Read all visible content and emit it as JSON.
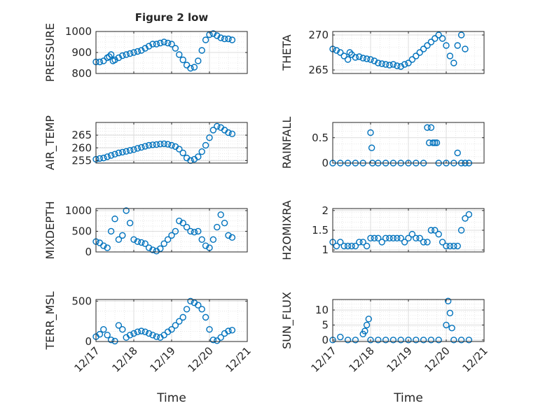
{
  "chart_data": [
    {
      "type": "scatter",
      "title": "Figure 2 low",
      "xlabel": "",
      "ylabel": "PRESSURE",
      "xlim": [
        0,
        4
      ],
      "ylim": [
        800,
        1000
      ],
      "yticks": [
        800,
        900,
        1000
      ],
      "xticks": [
        0,
        1,
        2,
        3,
        4
      ],
      "xticklabels": [
        "12/17",
        "12/18",
        "12/19",
        "12/20",
        "12/21"
      ],
      "series": [
        {
          "x": [
            0,
            0.1,
            0.2,
            0.3,
            0.35,
            0.4,
            0.45,
            0.5,
            0.6,
            0.7,
            0.8,
            0.9,
            1.0,
            1.1,
            1.2,
            1.3,
            1.4,
            1.5,
            1.6,
            1.7,
            1.8,
            1.9,
            2.0,
            2.1,
            2.2,
            2.3,
            2.4,
            2.5,
            2.6,
            2.7,
            2.8,
            2.9,
            3.0,
            3.1,
            3.2,
            3.3,
            3.4,
            3.5,
            3.6
          ],
          "y": [
            855,
            855,
            860,
            875,
            880,
            890,
            860,
            865,
            875,
            885,
            890,
            895,
            900,
            905,
            910,
            920,
            930,
            940,
            940,
            945,
            950,
            945,
            940,
            920,
            890,
            865,
            840,
            825,
            830,
            860,
            910,
            960,
            985,
            990,
            980,
            970,
            965,
            965,
            960
          ]
        }
      ]
    },
    {
      "type": "scatter",
      "xlabel": "",
      "ylabel": "THETA",
      "xlim": [
        0,
        4
      ],
      "ylim": [
        264.5,
        270.5
      ],
      "yticks": [
        265,
        270
      ],
      "xticks": [
        0,
        1,
        2,
        3,
        4
      ],
      "xticklabels": [
        "12/17",
        "12/18",
        "12/19",
        "12/20",
        "12/21"
      ],
      "series": [
        {
          "x": [
            0,
            0.1,
            0.2,
            0.3,
            0.4,
            0.45,
            0.5,
            0.6,
            0.7,
            0.8,
            0.9,
            1.0,
            1.1,
            1.2,
            1.3,
            1.4,
            1.5,
            1.6,
            1.7,
            1.8,
            1.9,
            2.0,
            2.1,
            2.2,
            2.3,
            2.4,
            2.5,
            2.6,
            2.7,
            2.8,
            2.9,
            3.0,
            3.1,
            3.2,
            3.3,
            3.4,
            3.5
          ],
          "y": [
            268,
            267.8,
            267.5,
            267,
            266.5,
            267.5,
            267.2,
            266.8,
            266.9,
            266.7,
            266.6,
            266.5,
            266.3,
            266,
            265.9,
            265.8,
            265.7,
            265.8,
            265.6,
            265.5,
            265.8,
            266,
            266.5,
            267,
            267.5,
            268,
            268.5,
            269,
            269.5,
            270,
            269.5,
            268.5,
            267,
            266,
            268.5,
            270,
            268
          ]
        }
      ]
    },
    {
      "type": "scatter",
      "xlabel": "",
      "ylabel": "AIR_TEMP",
      "xlim": [
        0,
        4
      ],
      "ylim": [
        254,
        270
      ],
      "yticks": [
        255,
        260,
        265
      ],
      "xticks": [
        0,
        1,
        2,
        3,
        4
      ],
      "xticklabels": [
        "12/17",
        "12/18",
        "12/19",
        "12/20",
        "12/21"
      ],
      "series": [
        {
          "x": [
            0,
            0.1,
            0.2,
            0.3,
            0.4,
            0.5,
            0.6,
            0.7,
            0.8,
            0.9,
            1.0,
            1.1,
            1.2,
            1.3,
            1.4,
            1.5,
            1.6,
            1.7,
            1.8,
            1.9,
            2.0,
            2.1,
            2.2,
            2.3,
            2.4,
            2.5,
            2.6,
            2.7,
            2.8,
            2.9,
            3.0,
            3.1,
            3.2,
            3.3,
            3.4,
            3.5,
            3.6
          ],
          "y": [
            255.5,
            255.8,
            256,
            256.5,
            257,
            257.5,
            258,
            258.3,
            258.6,
            259,
            259.3,
            259.8,
            260.2,
            260.6,
            261,
            261.2,
            261.3,
            261.5,
            261.6,
            261.4,
            261,
            260.5,
            259.5,
            258,
            256,
            255,
            255.5,
            256.5,
            258.5,
            261,
            264,
            267,
            268.5,
            268,
            267,
            266,
            265.5
          ]
        }
      ]
    },
    {
      "type": "scatter",
      "xlabel": "",
      "ylabel": "RAINFALL",
      "xlim": [
        0,
        4
      ],
      "ylim": [
        0,
        0.8
      ],
      "yticks": [
        0,
        0.5
      ],
      "xticks": [
        0,
        1,
        2,
        3,
        4
      ],
      "xticklabels": [
        "12/17",
        "12/18",
        "12/19",
        "12/20",
        "12/21"
      ],
      "series": [
        {
          "x": [
            0,
            0.2,
            0.4,
            0.6,
            0.8,
            1.0,
            1.03,
            1.05,
            1.2,
            1.4,
            1.6,
            1.8,
            2.0,
            2.2,
            2.4,
            2.5,
            2.55,
            2.6,
            2.65,
            2.7,
            2.75,
            2.8,
            3.0,
            3.2,
            3.3,
            3.4,
            3.5,
            3.6
          ],
          "y": [
            0,
            0,
            0,
            0,
            0,
            0.6,
            0.3,
            0,
            0,
            0,
            0,
            0,
            0,
            0,
            0,
            0.7,
            0.4,
            0.7,
            0.4,
            0.4,
            0.4,
            0,
            0,
            0,
            0.2,
            0,
            0,
            0
          ]
        }
      ]
    },
    {
      "type": "scatter",
      "xlabel": "",
      "ylabel": "MIXDEPTH",
      "xlim": [
        0,
        4
      ],
      "ylim": [
        0,
        1050
      ],
      "yticks": [
        0,
        500,
        1000
      ],
      "xticks": [
        0,
        1,
        2,
        3,
        4
      ],
      "xticklabels": [
        "12/17",
        "12/18",
        "12/19",
        "12/20",
        "12/21"
      ],
      "series": [
        {
          "x": [
            0,
            0.1,
            0.2,
            0.3,
            0.4,
            0.5,
            0.6,
            0.7,
            0.8,
            0.9,
            1.0,
            1.1,
            1.2,
            1.3,
            1.4,
            1.5,
            1.6,
            1.7,
            1.8,
            1.9,
            2.0,
            2.1,
            2.2,
            2.3,
            2.4,
            2.5,
            2.6,
            2.7,
            2.8,
            2.9,
            3.0,
            3.1,
            3.2,
            3.3,
            3.4,
            3.5,
            3.6
          ],
          "y": [
            250,
            220,
            150,
            100,
            500,
            800,
            300,
            400,
            1000,
            700,
            300,
            250,
            230,
            200,
            100,
            50,
            20,
            80,
            200,
            300,
            400,
            500,
            750,
            700,
            600,
            500,
            480,
            500,
            300,
            150,
            100,
            300,
            600,
            900,
            700,
            400,
            350
          ]
        }
      ]
    },
    {
      "type": "scatter",
      "xlabel": "",
      "ylabel": "H2OMIXRA",
      "xlim": [
        0,
        4
      ],
      "ylim": [
        0.95,
        2.05
      ],
      "yticks": [
        1,
        1.5,
        2
      ],
      "xticks": [
        0,
        1,
        2,
        3,
        4
      ],
      "xticklabels": [
        "12/17",
        "12/18",
        "12/19",
        "12/20",
        "12/21"
      ],
      "series": [
        {
          "x": [
            0,
            0.1,
            0.2,
            0.3,
            0.4,
            0.5,
            0.6,
            0.7,
            0.8,
            0.9,
            1.0,
            1.1,
            1.2,
            1.3,
            1.4,
            1.5,
            1.6,
            1.7,
            1.8,
            1.9,
            2.0,
            2.1,
            2.2,
            2.3,
            2.4,
            2.5,
            2.6,
            2.7,
            2.8,
            2.9,
            3.0,
            3.1,
            3.2,
            3.3,
            3.4,
            3.5,
            3.6
          ],
          "y": [
            1.2,
            1.1,
            1.2,
            1.1,
            1.1,
            1.1,
            1.1,
            1.2,
            1.2,
            1.1,
            1.3,
            1.3,
            1.3,
            1.2,
            1.3,
            1.3,
            1.3,
            1.3,
            1.3,
            1.2,
            1.3,
            1.4,
            1.3,
            1.3,
            1.2,
            1.2,
            1.5,
            1.5,
            1.4,
            1.2,
            1.1,
            1.1,
            1.1,
            1.1,
            1.5,
            1.8,
            1.9
          ]
        }
      ]
    },
    {
      "type": "scatter",
      "xlabel": "Time",
      "ylabel": "TERR_MSL",
      "xlim": [
        0,
        4
      ],
      "ylim": [
        0,
        520
      ],
      "yticks": [
        0,
        500
      ],
      "xticks": [
        0,
        1,
        2,
        3,
        4
      ],
      "xticklabels": [
        "12/17",
        "12/18",
        "12/19",
        "12/20",
        "12/21"
      ],
      "series": [
        {
          "x": [
            0,
            0.1,
            0.2,
            0.3,
            0.4,
            0.5,
            0.6,
            0.7,
            0.8,
            0.9,
            1.0,
            1.1,
            1.2,
            1.3,
            1.4,
            1.5,
            1.6,
            1.7,
            1.8,
            1.9,
            2.0,
            2.1,
            2.2,
            2.3,
            2.4,
            2.5,
            2.6,
            2.7,
            2.8,
            2.9,
            3.0,
            3.1,
            3.2,
            3.3,
            3.4,
            3.5,
            3.6
          ],
          "y": [
            60,
            90,
            150,
            80,
            20,
            5,
            200,
            150,
            50,
            80,
            100,
            120,
            130,
            120,
            100,
            80,
            60,
            50,
            80,
            120,
            150,
            200,
            250,
            300,
            400,
            500,
            480,
            450,
            400,
            300,
            150,
            20,
            10,
            50,
            100,
            130,
            140
          ]
        }
      ]
    },
    {
      "type": "scatter",
      "xlabel": "Time",
      "ylabel": "SUN_FLUX",
      "xlim": [
        0,
        4
      ],
      "ylim": [
        -0.5,
        13.5
      ],
      "yticks": [
        0,
        5,
        10
      ],
      "xticks": [
        0,
        1,
        2,
        3,
        4
      ],
      "xticklabels": [
        "12/17",
        "12/18",
        "12/19",
        "12/20",
        "12/21"
      ],
      "series": [
        {
          "x": [
            0,
            0.2,
            0.4,
            0.6,
            0.8,
            0.85,
            0.9,
            0.95,
            1.0,
            1.2,
            1.4,
            1.6,
            1.8,
            2.0,
            2.2,
            2.4,
            2.6,
            2.8,
            3.0,
            3.05,
            3.1,
            3.15,
            3.2,
            3.4,
            3.6
          ],
          "y": [
            0,
            1,
            0,
            0,
            2,
            3,
            5,
            7,
            0,
            0,
            0,
            0,
            0,
            0,
            0,
            0,
            0,
            0,
            5,
            13,
            9,
            4,
            0,
            0,
            0
          ]
        }
      ]
    }
  ]
}
